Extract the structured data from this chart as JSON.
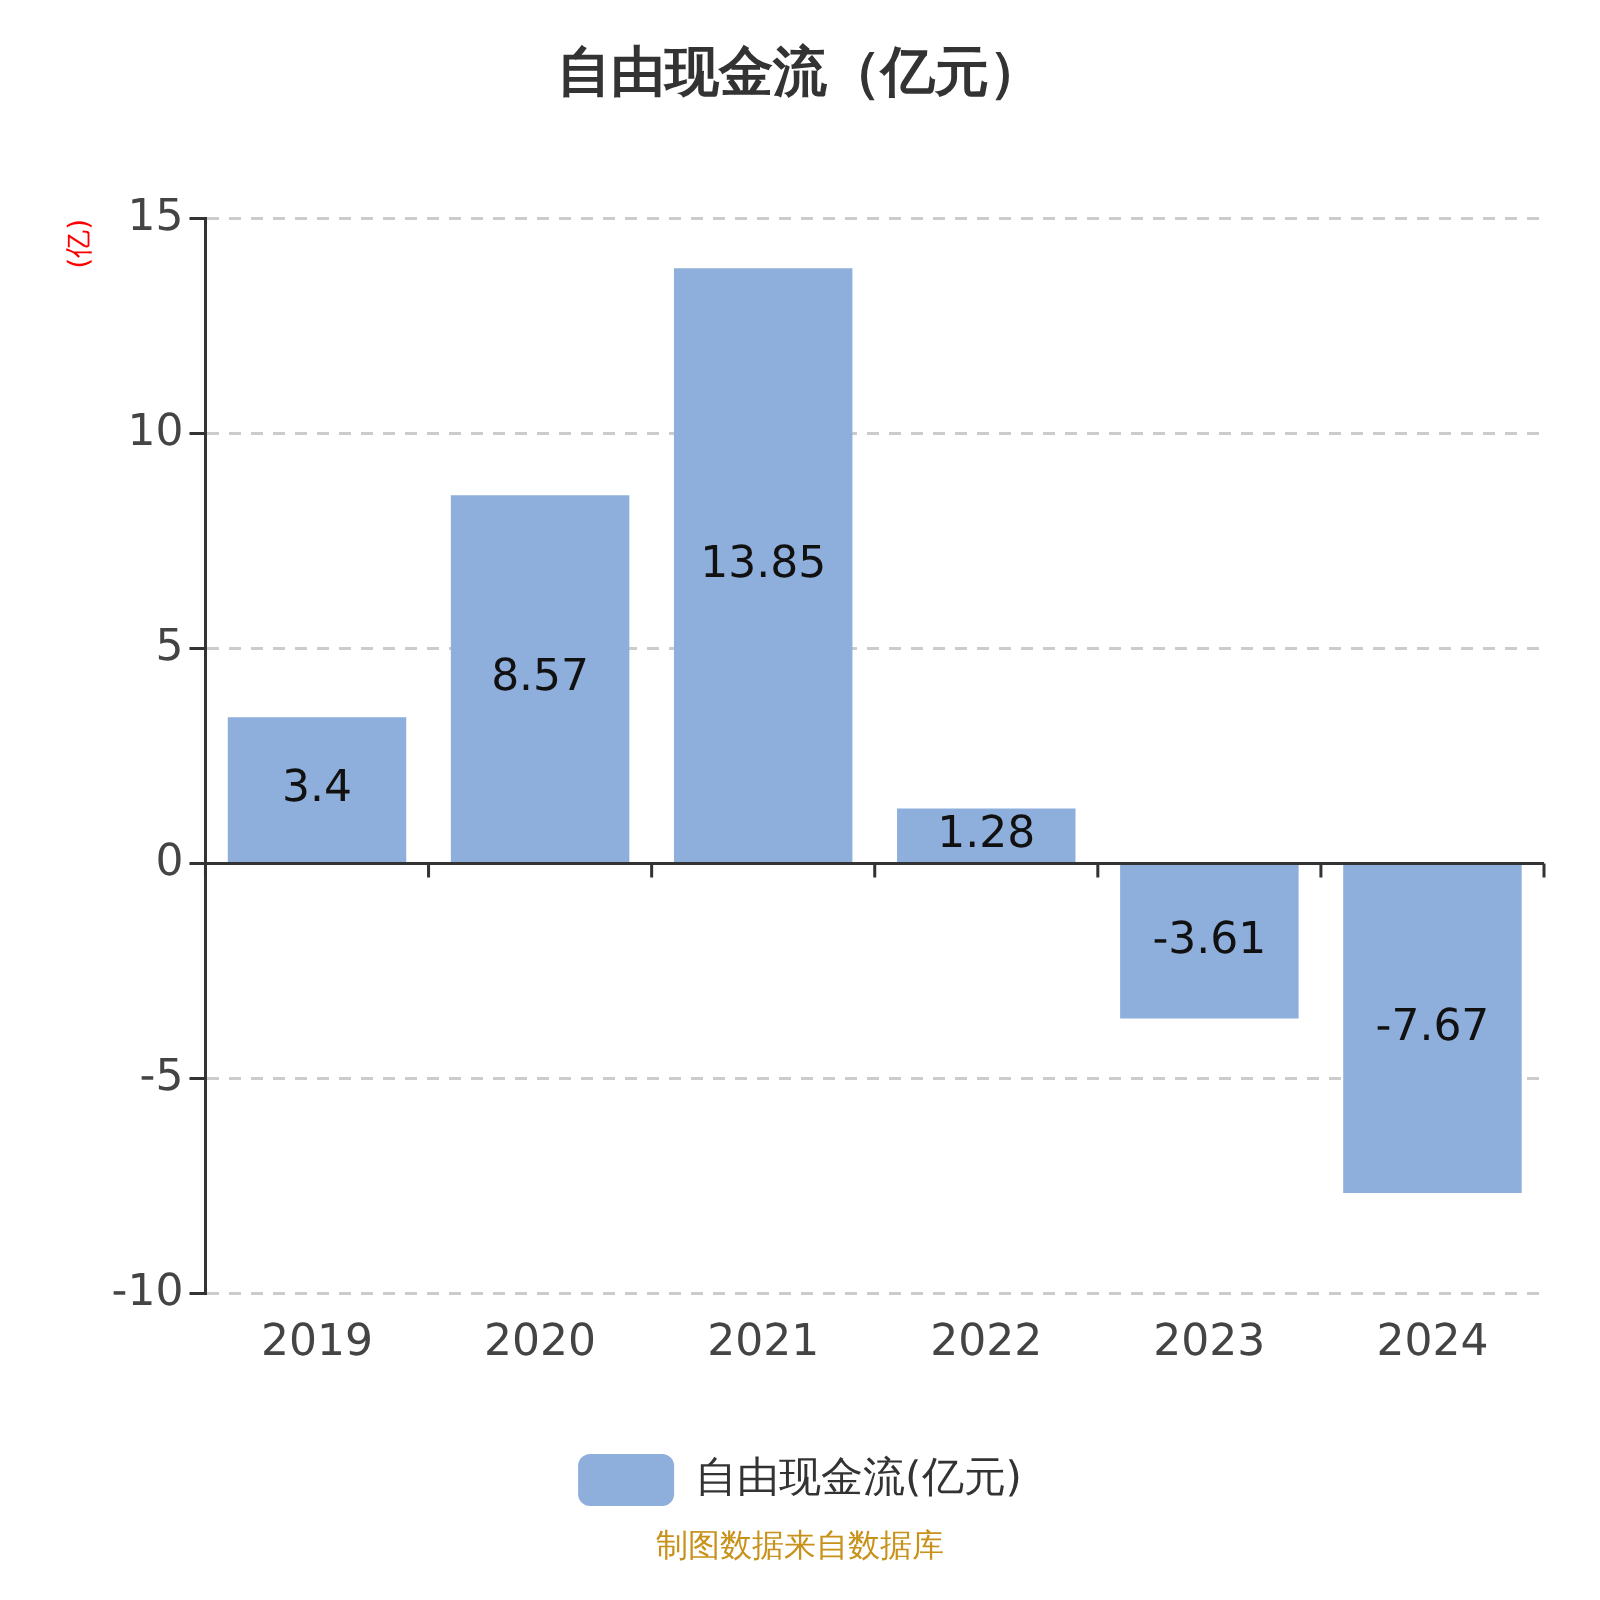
{
  "chart_data": {
    "type": "bar",
    "title": "自由现金流（亿元）",
    "ylabel": "(亿)",
    "categories": [
      "2019",
      "2020",
      "2021",
      "2022",
      "2023",
      "2024"
    ],
    "series": [
      {
        "name": "自由现金流(亿元)",
        "color": "#8eaedb",
        "values": [
          3.4,
          8.57,
          13.85,
          1.28,
          -3.61,
          -7.67
        ]
      }
    ],
    "ylim": [
      -10,
      15
    ],
    "yticks": [
      -10,
      -5,
      0,
      5,
      10,
      15
    ],
    "grid": "y",
    "legend": "bottom",
    "data_labels": true,
    "annotations": [
      "制图数据来自数据库"
    ]
  }
}
